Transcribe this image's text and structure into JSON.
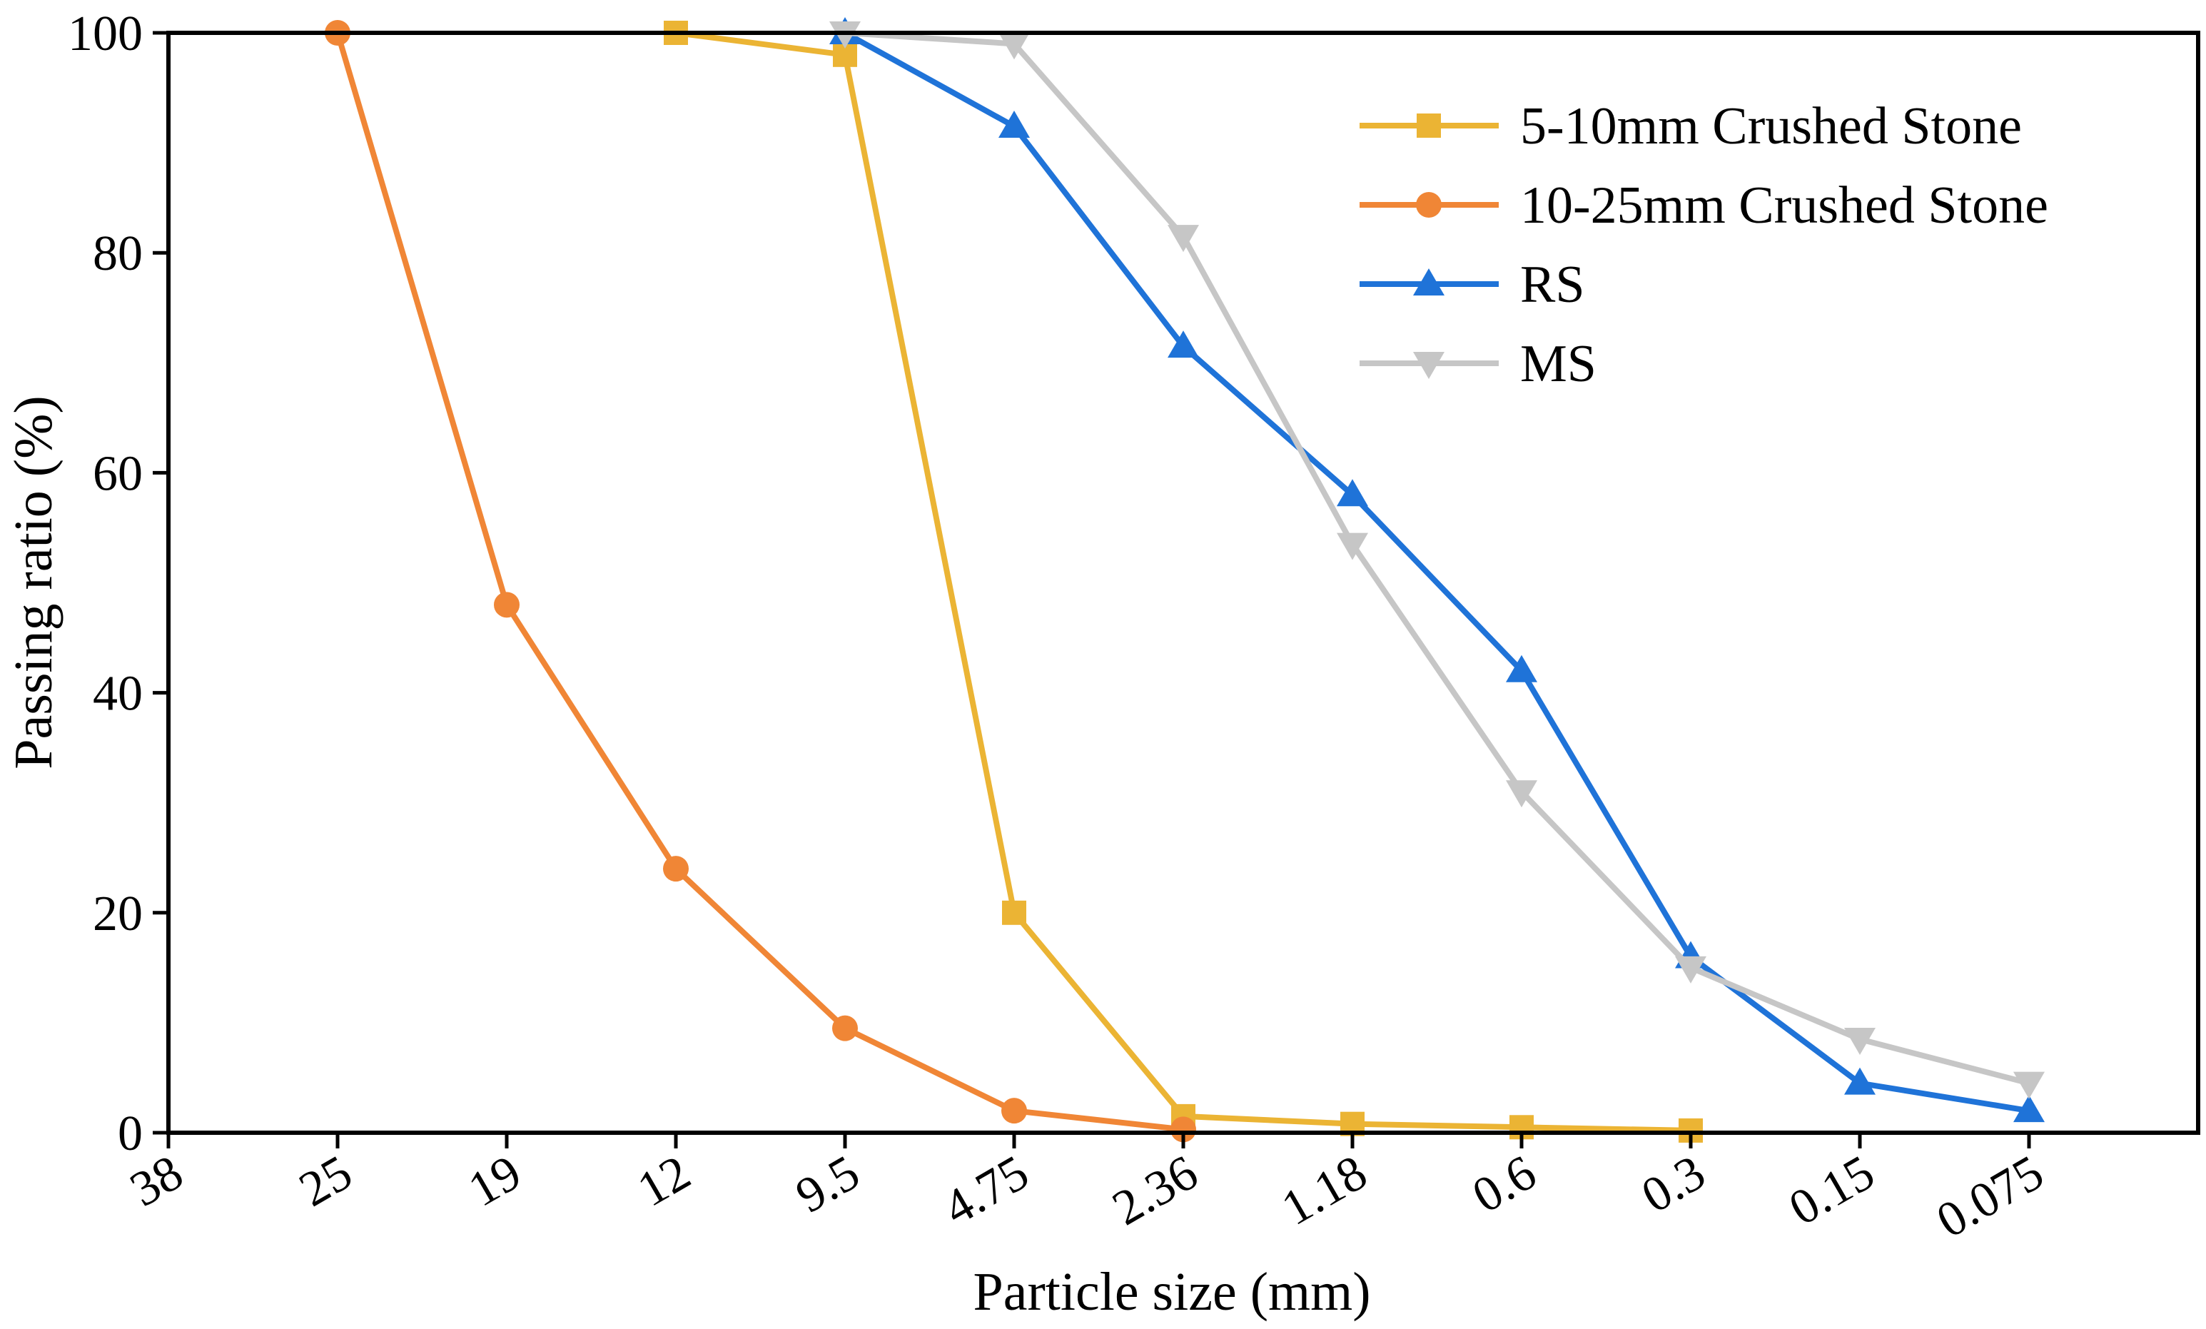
{
  "chart_data": {
    "type": "line",
    "title": "",
    "xlabel": "Particle size (mm)",
    "ylabel": "Passing ratio (%)",
    "categories": [
      "38",
      "25",
      "19",
      "12",
      "9.5",
      "4.75",
      "2.36",
      "1.18",
      "0.6",
      "0.3",
      "0.15",
      "0.075"
    ],
    "ylim": [
      0,
      100
    ],
    "yticks": [
      "0",
      "20",
      "40",
      "60",
      "80",
      "100"
    ],
    "legend_position": "top-right",
    "grid": false,
    "series": [
      {
        "name": "5-10mm Crushed Stone",
        "color": "#EBB434",
        "marker": "square",
        "x": [
          "12",
          "9.5",
          "4.75",
          "2.36",
          "1.18",
          "0.6",
          "0.3"
        ],
        "values": [
          100,
          98,
          20,
          1.5,
          0.8,
          0.5,
          0.2
        ]
      },
      {
        "name": "10-25mm Crushed Stone",
        "color": "#F08636",
        "marker": "circle",
        "x": [
          "25",
          "19",
          "12",
          "9.5",
          "4.75",
          "2.36"
        ],
        "values": [
          100,
          48,
          24,
          9.5,
          2,
          0.3
        ]
      },
      {
        "name": "RS",
        "color": "#1F73D8",
        "marker": "triangle-up",
        "x": [
          "9.5",
          "4.75",
          "2.36",
          "1.18",
          "0.6",
          "0.3",
          "0.15",
          "0.075"
        ],
        "values": [
          100,
          91.5,
          71.5,
          58,
          42,
          16,
          4.5,
          2
        ]
      },
      {
        "name": "MS",
        "color": "#C6C6C6",
        "marker": "triangle-down",
        "x": [
          "9.5",
          "4.75",
          "2.36",
          "1.18",
          "0.6",
          "0.3",
          "0.15",
          "0.075"
        ],
        "values": [
          100,
          99,
          81.5,
          53.5,
          31,
          15,
          8.5,
          4.5
        ]
      }
    ]
  }
}
